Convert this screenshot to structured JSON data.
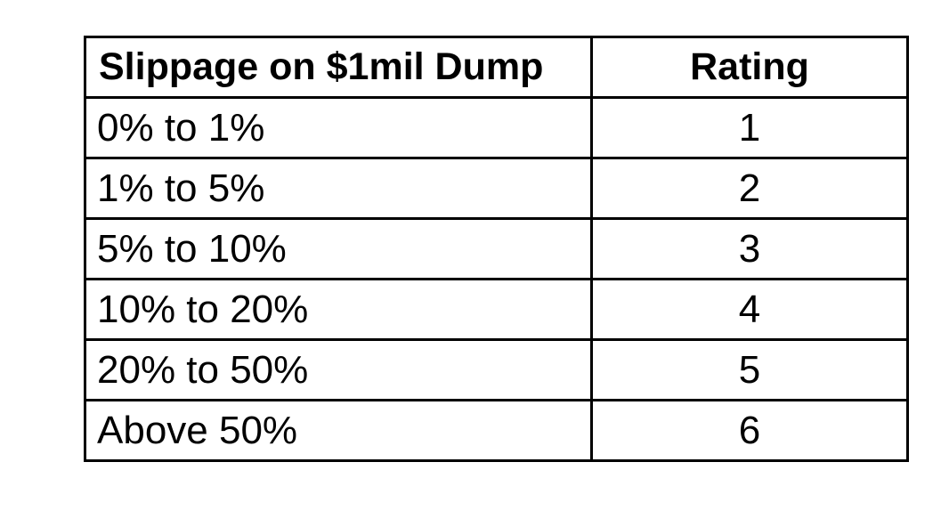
{
  "table": {
    "headers": {
      "slippage": "Slippage on $1mil Dump",
      "rating": "Rating"
    },
    "rows": [
      {
        "range": "0% to 1%",
        "rating": "1"
      },
      {
        "range": "1% to 5%",
        "rating": "2"
      },
      {
        "range": "5% to 10%",
        "rating": "3"
      },
      {
        "range": "10% to 20%",
        "rating": "4"
      },
      {
        "range": "20% to 50%",
        "rating": "5"
      },
      {
        "range": "Above 50%",
        "rating": "6"
      }
    ]
  }
}
